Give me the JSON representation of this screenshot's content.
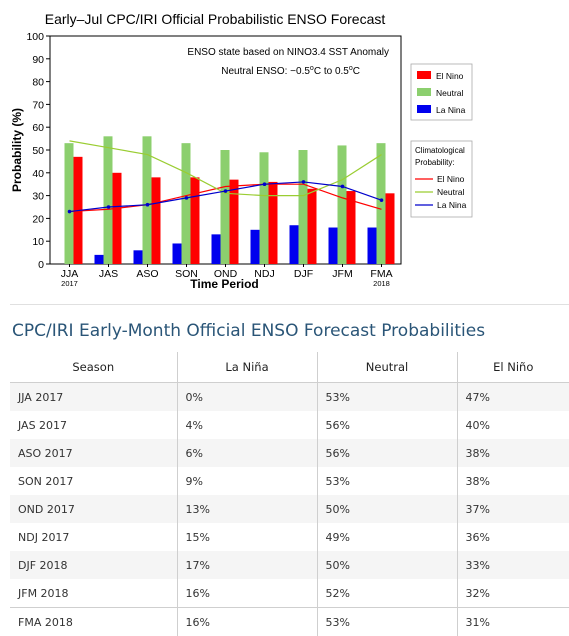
{
  "chart_data": {
    "type": "bar",
    "title": "Early–Jul CPC/IRI Official Probabilistic ENSO Forecast",
    "xlabel": "Time Period",
    "ylabel": "Probability (%)",
    "ylim": [
      0,
      100
    ],
    "yticks": [
      0,
      10,
      20,
      30,
      40,
      50,
      60,
      70,
      80,
      90,
      100
    ],
    "categories": [
      "JJA",
      "JAS",
      "ASO",
      "SON",
      "OND",
      "NDJ",
      "DJF",
      "JFM",
      "FMA"
    ],
    "category_years": [
      "2017",
      "",
      "",
      "",
      "",
      "",
      "",
      "",
      "2018"
    ],
    "annotation_line1": "ENSO state based on NINO3.4 SST Anomaly",
    "annotation_line2_prefix": "Neutral ENSO: −0.5",
    "annotation_line2_mid": "C to 0.5",
    "annotation_line2_suffix": "C",
    "degree_symbol": "o",
    "series": [
      {
        "name": "La Nina",
        "color": "#0000ee",
        "values": [
          0,
          4,
          6,
          9,
          13,
          15,
          17,
          16,
          16
        ]
      },
      {
        "name": "Neutral",
        "color": "#8ccf6e",
        "values": [
          53,
          56,
          56,
          53,
          50,
          49,
          50,
          52,
          53
        ]
      },
      {
        "name": "El Nino",
        "color": "#ff0000",
        "values": [
          47,
          40,
          38,
          38,
          37,
          36,
          33,
          32,
          31
        ]
      }
    ],
    "legend_order": [
      "El Nino",
      "Neutral",
      "La Nina"
    ],
    "legend_placement": "right",
    "climatology": {
      "title_line1": "Climatological",
      "title_line2": "Probability:",
      "series": [
        {
          "name": "El Nino",
          "color": "#ff0000",
          "values": [
            23,
            24,
            26,
            30,
            34,
            35,
            35,
            29,
            24
          ]
        },
        {
          "name": "Neutral",
          "color": "#9acd32",
          "values": [
            54,
            51,
            48,
            40,
            31,
            30,
            30,
            37,
            48
          ]
        },
        {
          "name": "La Nina",
          "color": "#0000cc",
          "values": [
            23,
            25,
            26,
            29,
            32,
            35,
            36,
            34,
            28
          ]
        }
      ]
    },
    "grid": false
  },
  "table": {
    "heading": "CPC/IRI Early-Month Official ENSO Forecast Probabilities",
    "columns": [
      "Season",
      "La Niña",
      "Neutral",
      "El Niño"
    ],
    "rows": [
      [
        "JJA 2017",
        "0%",
        "53%",
        "47%"
      ],
      [
        "JAS 2017",
        "4%",
        "56%",
        "40%"
      ],
      [
        "ASO 2017",
        "6%",
        "56%",
        "38%"
      ],
      [
        "SON 2017",
        "9%",
        "53%",
        "38%"
      ],
      [
        "OND 2017",
        "13%",
        "50%",
        "37%"
      ],
      [
        "NDJ 2017",
        "15%",
        "49%",
        "36%"
      ],
      [
        "DJF 2018",
        "17%",
        "50%",
        "33%"
      ],
      [
        "JFM 2018",
        "16%",
        "52%",
        "32%"
      ],
      [
        "FMA 2018",
        "16%",
        "53%",
        "31%"
      ]
    ]
  }
}
